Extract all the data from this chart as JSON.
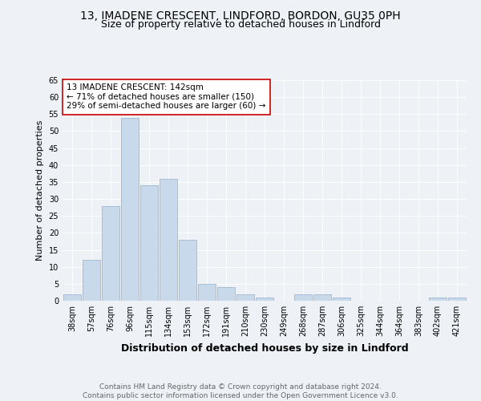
{
  "title_line1": "13, IMADENE CRESCENT, LINDFORD, BORDON, GU35 0PH",
  "title_line2": "Size of property relative to detached houses in Lindford",
  "xlabel": "Distribution of detached houses by size in Lindford",
  "ylabel": "Number of detached properties",
  "categories": [
    "38sqm",
    "57sqm",
    "76sqm",
    "96sqm",
    "115sqm",
    "134sqm",
    "153sqm",
    "172sqm",
    "191sqm",
    "210sqm",
    "230sqm",
    "249sqm",
    "268sqm",
    "287sqm",
    "306sqm",
    "325sqm",
    "344sqm",
    "364sqm",
    "383sqm",
    "402sqm",
    "421sqm"
  ],
  "values": [
    2,
    12,
    28,
    54,
    34,
    36,
    18,
    5,
    4,
    2,
    1,
    0,
    2,
    2,
    1,
    0,
    0,
    0,
    0,
    1,
    1
  ],
  "bar_color": "#c8d9eb",
  "bar_edge_color": "#9db8d0",
  "ylim": [
    0,
    65
  ],
  "yticks": [
    0,
    5,
    10,
    15,
    20,
    25,
    30,
    35,
    40,
    45,
    50,
    55,
    60,
    65
  ],
  "annotation_text": "13 IMADENE CRESCENT: 142sqm\n← 71% of detached houses are smaller (150)\n29% of semi-detached houses are larger (60) →",
  "annotation_box_facecolor": "white",
  "annotation_box_edgecolor": "#cc0000",
  "footnote": "Contains HM Land Registry data © Crown copyright and database right 2024.\nContains public sector information licensed under the Open Government Licence v3.0.",
  "background_color": "#eef2f7",
  "grid_color": "white",
  "title_fontsize": 10,
  "subtitle_fontsize": 9,
  "xlabel_fontsize": 9,
  "ylabel_fontsize": 8,
  "tick_fontsize": 7,
  "annotation_fontsize": 7.5,
  "footnote_fontsize": 6.5
}
